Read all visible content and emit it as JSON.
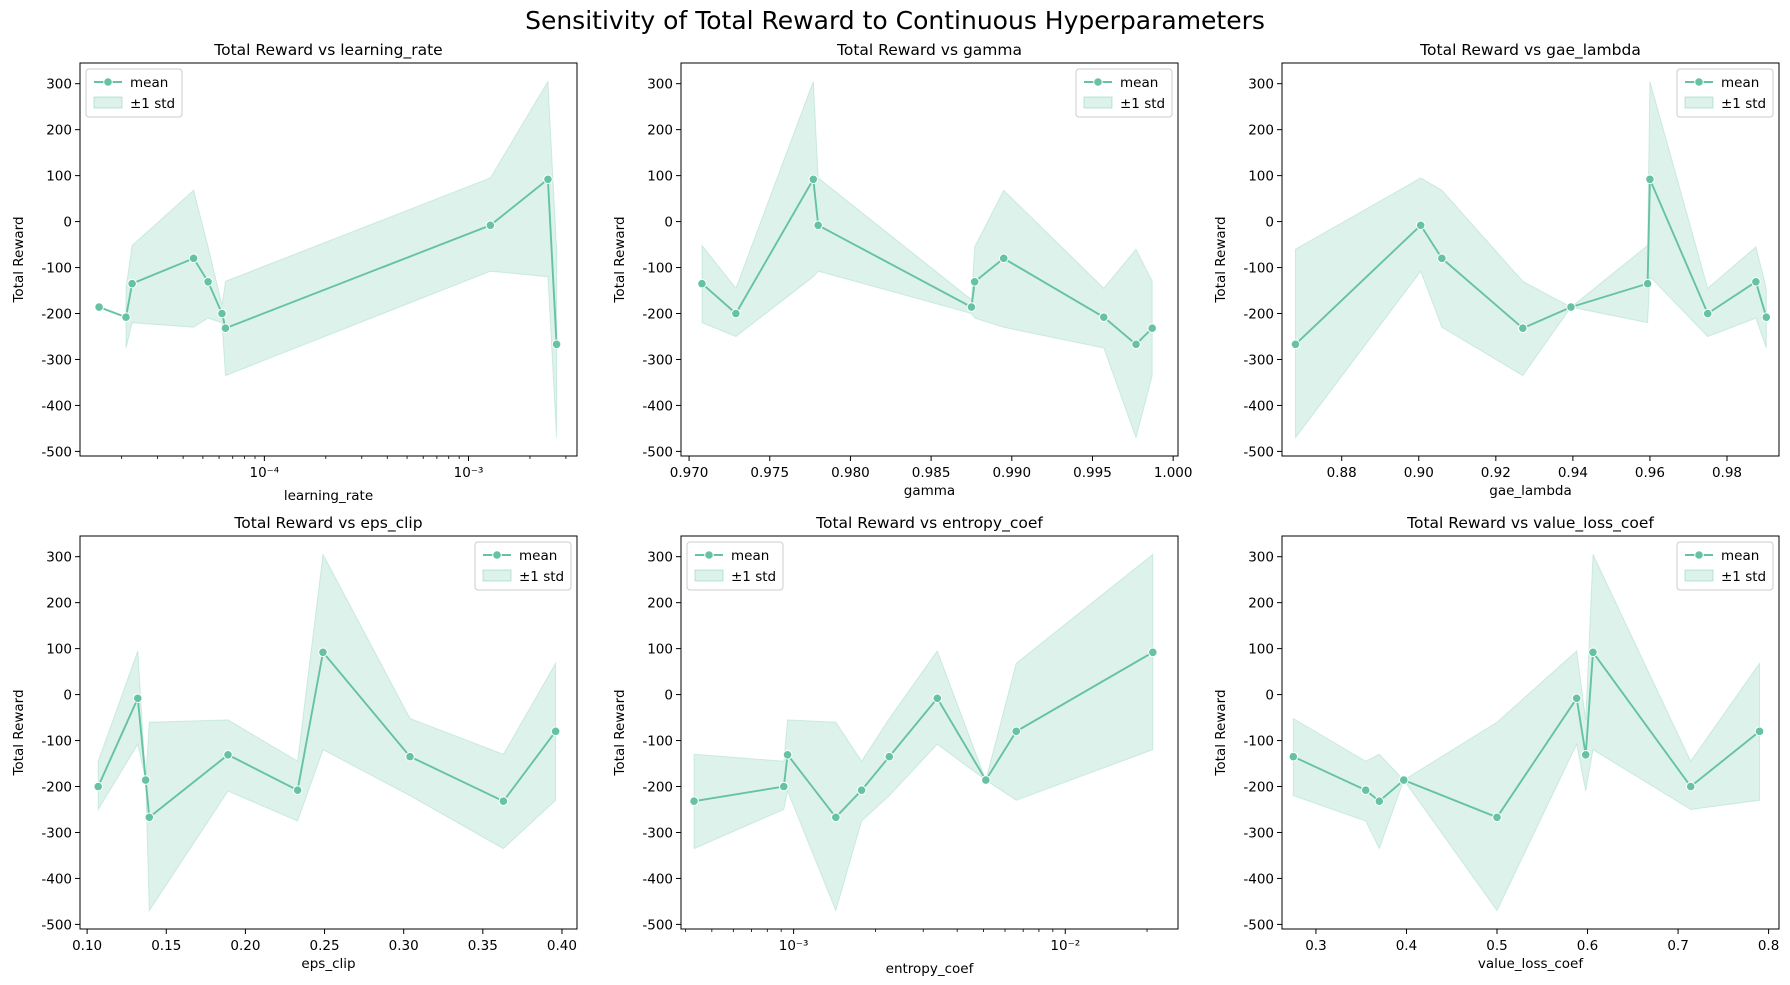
{
  "title": "Sensitivity of Total Reward to Continuous Hyperparameters",
  "colors": {
    "line": "#66c2a5",
    "band": "#66c2a5",
    "axis": "#000000"
  },
  "chart_data": [
    {
      "type": "line",
      "title": "Total Reward vs learning_rate",
      "xlabel": "learning_rate",
      "ylabel": "Total Reward",
      "xscale": "log",
      "xlim": [
        1.25e-05,
        0.0034
      ],
      "ylim": [
        -510,
        345
      ],
      "xticks": [
        {
          "v": 0.0001,
          "label": "10⁻⁴"
        },
        {
          "v": 0.001,
          "label": "10⁻³"
        }
      ],
      "yticks": [
        -500,
        -400,
        -300,
        -200,
        -100,
        0,
        100,
        200,
        300
      ],
      "legend": "top-left",
      "legend_labels": [
        "mean",
        "±1 std"
      ],
      "x": [
        1.55e-05,
        2.1e-05,
        2.25e-05,
        4.5e-05,
        5.3e-05,
        6.2e-05,
        6.45e-05,
        0.00128,
        0.00245,
        0.0027
      ],
      "mean": [
        -186,
        -208,
        -135,
        -80,
        -131,
        -200,
        -232,
        -8,
        92,
        -267
      ],
      "lower": [
        null,
        -275,
        -220,
        -230,
        -210,
        -220,
        -335,
        -108,
        -120,
        -470
      ],
      "upper": [
        null,
        -145,
        -52,
        68,
        -55,
        -182,
        -130,
        95,
        305,
        -60
      ]
    },
    {
      "type": "line",
      "title": "Total Reward vs gamma",
      "xlabel": "gamma",
      "ylabel": "Total Reward",
      "xscale": "linear",
      "xlim": [
        0.9695,
        1.0003
      ],
      "ylim": [
        -510,
        345
      ],
      "xticks": [
        {
          "v": 0.97,
          "label": "0.970"
        },
        {
          "v": 0.975,
          "label": "0.975"
        },
        {
          "v": 0.98,
          "label": "0.980"
        },
        {
          "v": 0.985,
          "label": "0.985"
        },
        {
          "v": 0.99,
          "label": "0.990"
        },
        {
          "v": 0.995,
          "label": "0.995"
        },
        {
          "v": 1.0,
          "label": "1.000"
        }
      ],
      "yticks": [
        -500,
        -400,
        -300,
        -200,
        -100,
        0,
        100,
        200,
        300
      ],
      "legend": "top-right",
      "legend_labels": [
        "mean",
        "±1 std"
      ],
      "x": [
        0.9708,
        0.9729,
        0.9777,
        0.978,
        0.9875,
        0.9877,
        0.9895,
        0.9957,
        0.9977,
        0.9987
      ],
      "mean": [
        -135,
        -200,
        92,
        -8,
        -186,
        -131,
        -80,
        -208,
        -267,
        -232
      ],
      "lower": [
        -220,
        -250,
        -120,
        -108,
        -200,
        -210,
        -230,
        -275,
        -470,
        -335
      ],
      "upper": [
        -52,
        -145,
        305,
        95,
        -170,
        -55,
        68,
        -145,
        -60,
        -130
      ]
    },
    {
      "type": "line",
      "title": "Total Reward vs gae_lambda",
      "xlabel": "gae_lambda",
      "ylabel": "Total Reward",
      "xscale": "linear",
      "xlim": [
        0.8645,
        0.9935
      ],
      "ylim": [
        -510,
        345
      ],
      "xticks": [
        {
          "v": 0.88,
          "label": "0.88"
        },
        {
          "v": 0.9,
          "label": "0.90"
        },
        {
          "v": 0.92,
          "label": "0.92"
        },
        {
          "v": 0.94,
          "label": "0.94"
        },
        {
          "v": 0.96,
          "label": "0.96"
        },
        {
          "v": 0.98,
          "label": "0.98"
        }
      ],
      "yticks": [
        -500,
        -400,
        -300,
        -200,
        -100,
        0,
        100,
        200,
        300
      ],
      "legend": "top-right",
      "legend_labels": [
        "mean",
        "±1 std"
      ],
      "x": [
        0.868,
        0.9005,
        0.906,
        0.927,
        0.9395,
        0.9594,
        0.96,
        0.975,
        0.9875,
        0.9902
      ],
      "mean": [
        -267,
        -8,
        -80,
        -232,
        -186,
        -135,
        92,
        -200,
        -131,
        -208
      ],
      "lower": [
        -470,
        -108,
        -230,
        -335,
        -186,
        -220,
        -120,
        -250,
        -210,
        -275
      ],
      "upper": [
        -60,
        95,
        68,
        -130,
        -186,
        -52,
        305,
        -145,
        -55,
        -145
      ]
    },
    {
      "type": "line",
      "title": "Total Reward vs eps_clip",
      "xlabel": "eps_clip",
      "ylabel": "Total Reward",
      "xscale": "linear",
      "xlim": [
        0.0955,
        0.4095
      ],
      "ylim": [
        -510,
        345
      ],
      "xticks": [
        {
          "v": 0.1,
          "label": "0.10"
        },
        {
          "v": 0.15,
          "label": "0.15"
        },
        {
          "v": 0.2,
          "label": "0.20"
        },
        {
          "v": 0.25,
          "label": "0.25"
        },
        {
          "v": 0.3,
          "label": "0.30"
        },
        {
          "v": 0.35,
          "label": "0.35"
        },
        {
          "v": 0.4,
          "label": "0.40"
        }
      ],
      "yticks": [
        -500,
        -400,
        -300,
        -200,
        -100,
        0,
        100,
        200,
        300
      ],
      "legend": "top-right",
      "legend_labels": [
        "mean",
        "±1 std"
      ],
      "x": [
        0.107,
        0.132,
        0.137,
        0.1393,
        0.189,
        0.233,
        0.249,
        0.304,
        0.363,
        0.396
      ],
      "mean": [
        -200,
        -8,
        -186,
        -267,
        -131,
        -208,
        92,
        -135,
        -232,
        -80
      ],
      "lower": [
        -250,
        -108,
        -186,
        -470,
        -210,
        -275,
        -120,
        -220,
        -335,
        -230
      ],
      "upper": [
        -145,
        95,
        -186,
        -60,
        -55,
        -145,
        305,
        -52,
        -130,
        68
      ]
    },
    {
      "type": "line",
      "title": "Total Reward vs entropy_coef",
      "xlabel": "entropy_coef",
      "ylabel": "Total Reward",
      "xscale": "log",
      "xlim": [
        0.000385,
        0.026
      ],
      "ylim": [
        -510,
        345
      ],
      "xticks": [
        {
          "v": 0.001,
          "label": "10⁻³"
        },
        {
          "v": 0.01,
          "label": "10⁻²"
        }
      ],
      "yticks": [
        -500,
        -400,
        -300,
        -200,
        -100,
        0,
        100,
        200,
        300
      ],
      "legend": "top-left",
      "legend_labels": [
        "mean",
        "±1 std"
      ],
      "x": [
        0.00043,
        0.00092,
        0.00095,
        0.00143,
        0.00178,
        0.00225,
        0.00338,
        0.0051,
        0.0066,
        0.021
      ],
      "mean": [
        -232,
        -200,
        -131,
        -267,
        -208,
        -135,
        -8,
        -186,
        -80,
        92
      ],
      "lower": [
        -335,
        -250,
        -210,
        -470,
        -275,
        -220,
        -108,
        -186,
        -230,
        -120
      ],
      "upper": [
        -130,
        -145,
        -55,
        -60,
        -145,
        -52,
        95,
        -186,
        68,
        305
      ]
    },
    {
      "type": "line",
      "title": "Total Reward vs value_loss_coef",
      "xlabel": "value_loss_coef",
      "ylabel": "Total Reward",
      "xscale": "linear",
      "xlim": [
        0.2625,
        0.8115
      ],
      "ylim": [
        -510,
        345
      ],
      "xticks": [
        {
          "v": 0.3,
          "label": "0.3"
        },
        {
          "v": 0.4,
          "label": "0.4"
        },
        {
          "v": 0.5,
          "label": "0.5"
        },
        {
          "v": 0.6,
          "label": "0.6"
        },
        {
          "v": 0.7,
          "label": "0.7"
        },
        {
          "v": 0.8,
          "label": "0.8"
        }
      ],
      "yticks": [
        -500,
        -400,
        -300,
        -200,
        -100,
        0,
        100,
        200,
        300
      ],
      "legend": "top-right",
      "legend_labels": [
        "mean",
        "±1 std"
      ],
      "x": [
        0.275,
        0.355,
        0.37,
        0.397,
        0.5,
        0.588,
        0.598,
        0.606,
        0.714,
        0.79
      ],
      "mean": [
        -135,
        -208,
        -232,
        -186,
        -267,
        -8,
        -131,
        92,
        -200,
        -80
      ],
      "lower": [
        -220,
        -275,
        -335,
        -186,
        -470,
        -108,
        -210,
        -120,
        -250,
        -230
      ],
      "upper": [
        -52,
        -145,
        -130,
        -186,
        -60,
        95,
        -55,
        305,
        -145,
        68
      ]
    }
  ]
}
